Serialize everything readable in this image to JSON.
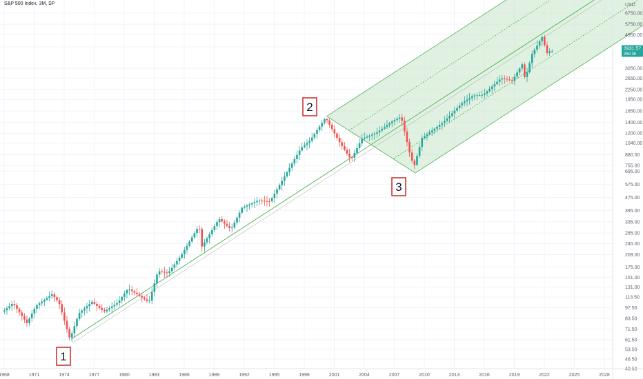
{
  "header": {
    "title": "S&P 500 Index, 3M, SP"
  },
  "chart_data": {
    "type": "candlestick",
    "y_scale": "log",
    "currency": "USD",
    "y_ticks": [
      40.5,
      46.5,
      53.5,
      61.5,
      71.5,
      83.5,
      97.5,
      113.5,
      131,
      151,
      175,
      209,
      245,
      285,
      335,
      395,
      475,
      575,
      695,
      755,
      880,
      1040,
      1200,
      1400,
      1650,
      1950,
      2250,
      2650,
      3050,
      4150,
      4950,
      5750,
      6750
    ],
    "y_tick_labels": [
      "40.50",
      "46.50",
      "53.50",
      "61.50",
      "71.50",
      "83.50",
      "97.50",
      "113.50",
      "131.00",
      "151.00",
      "175.00",
      "209.00",
      "245.00",
      "285.00",
      "335.00",
      "395.00",
      "475.00",
      "575.00",
      "695.00",
      "755.00",
      "880.00",
      "1040.00",
      "1200.00",
      "1400.00",
      "1650.00",
      "1950.00",
      "2250.00",
      "2650.00",
      "3050.00",
      "4150.00",
      "4950.00",
      "5750.00",
      "6750.00"
    ],
    "x_tick_labels": [
      "1968",
      "1971",
      "1974",
      "1977",
      "1980",
      "1983",
      "1986",
      "1989",
      "1992",
      "1995",
      "1998",
      "2001",
      "2004",
      "2007",
      "2010",
      "2013",
      "2016",
      "2019",
      "2022",
      "2025",
      "2028"
    ],
    "last_price": {
      "value": "3931.57",
      "countdown": "28d 3h",
      "color": "#26a69a"
    },
    "colors": {
      "up": "#26a69a",
      "down": "#ef5350",
      "channel_fill": "#c8e6c9",
      "channel_line": "#4caf50"
    },
    "pitchfork": {
      "points": [
        {
          "label": "1",
          "year": 1974.7,
          "price": 62
        },
        {
          "label": "2",
          "year": 2000.25,
          "price": 1530
        },
        {
          "label": "3",
          "year": 2009.1,
          "price": 676
        }
      ]
    },
    "anchors": [
      [
        1968.0,
        92
      ],
      [
        1969.0,
        104
      ],
      [
        1970.4,
        78
      ],
      [
        1971.3,
        100
      ],
      [
        1972.9,
        118
      ],
      [
        1973.6,
        105
      ],
      [
        1974.7,
        62
      ],
      [
        1975.6,
        90
      ],
      [
        1976.9,
        106
      ],
      [
        1978.1,
        92
      ],
      [
        1979.5,
        105
      ],
      [
        1980.5,
        128
      ],
      [
        1981.7,
        115
      ],
      [
        1982.6,
        105
      ],
      [
        1983.5,
        165
      ],
      [
        1984.5,
        160
      ],
      [
        1985.9,
        210
      ],
      [
        1987.6,
        318
      ],
      [
        1987.9,
        235
      ],
      [
        1989.6,
        350
      ],
      [
        1990.8,
        300
      ],
      [
        1991.9,
        410
      ],
      [
        1993.5,
        455
      ],
      [
        1994.7,
        450
      ],
      [
        1996.0,
        620
      ],
      [
        1997.8,
        970
      ],
      [
        1998.7,
        1080
      ],
      [
        2000.25,
        1500
      ],
      [
        2001.7,
        1040
      ],
      [
        2002.8,
        820
      ],
      [
        2003.9,
        1110
      ],
      [
        2005.3,
        1200
      ],
      [
        2006.9,
        1420
      ],
      [
        2007.8,
        1520
      ],
      [
        2008.7,
        880
      ],
      [
        2009.1,
        740
      ],
      [
        2009.9,
        1120
      ],
      [
        2011.0,
        1260
      ],
      [
        2012.0,
        1400
      ],
      [
        2013.9,
        1850
      ],
      [
        2015.0,
        2060
      ],
      [
        2016.0,
        2080
      ],
      [
        2017.8,
        2650
      ],
      [
        2018.9,
        2550
      ],
      [
        2019.9,
        3230
      ],
      [
        2020.2,
        2590
      ],
      [
        2020.9,
        3750
      ],
      [
        2021.9,
        4770
      ],
      [
        2022.4,
        3800
      ],
      [
        2022.7,
        3900
      ]
    ]
  }
}
